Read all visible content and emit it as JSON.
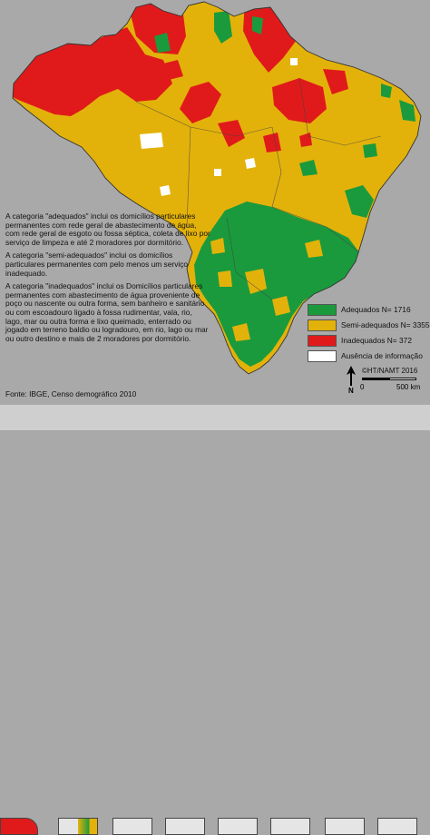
{
  "map": {
    "colors": {
      "background": "#a9a9a9",
      "adequados": "#1a9a3c",
      "semi_adequados": "#e3b20a",
      "inadequados": "#e01a1a",
      "ausencia": "#ffffff",
      "border": "#333333"
    },
    "description_paragraphs": [
      "A categoria \"adequados\" inclui os domicílios particulares permanentes com rede geral de abastecimento de água, com rede geral de esgoto ou fossa séptica, coleta de lixo por serviço de limpeza e até 2 moradores por dormitório.",
      "A categoria \"semi-adequados\" inclui os domicílios particulares permanentes com pelo menos um serviço inadequado.",
      "A categoria \"inadequados\" inclui os Domicílios particulares permanentes com abastecimento de água proveniente de poço ou nascente ou outra forma, sem banheiro e sanitário ou com escoadouro ligado à fossa rudimentar, vala, rio, lago, mar ou outra forma e lixo queimado, enterrado ou jogado em terreno baldio ou logradouro, em rio, lago ou mar ou outro destino e mais de 2 moradores por dormitório."
    ],
    "source": "Fonte: IBGE, Censo demográfico 2010",
    "legend": [
      {
        "label": "Adequados N= 1716",
        "color": "#1a9a3c"
      },
      {
        "label": "Semi-adequados N= 3355",
        "color": "#e3b20a"
      },
      {
        "label": "Inadequados N= 372",
        "color": "#e01a1a"
      },
      {
        "label": "Ausência de informação",
        "color": "#ffffff"
      }
    ],
    "credit": "©HT/NAMT 2016",
    "scale": {
      "zero": "0",
      "distance": "500 km"
    },
    "north_label": "N"
  }
}
